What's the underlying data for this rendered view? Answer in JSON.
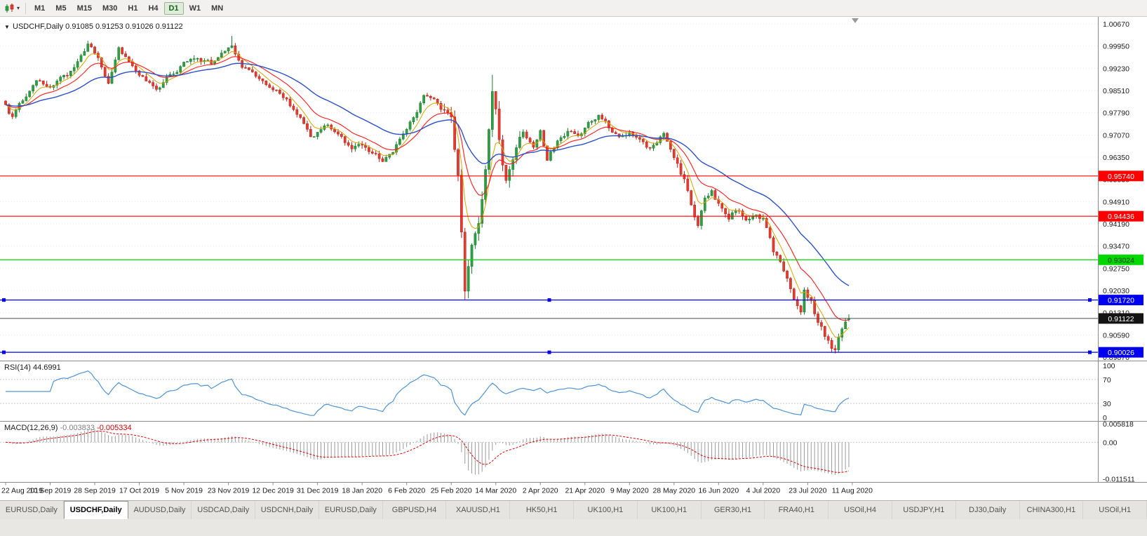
{
  "toolbar": {
    "chart_icon": "candlestick-chart-icon",
    "dropdown_caret": "▾",
    "timeframes": [
      {
        "label": "M1",
        "active": false
      },
      {
        "label": "M5",
        "active": false
      },
      {
        "label": "M15",
        "active": false
      },
      {
        "label": "M30",
        "active": false
      },
      {
        "label": "H1",
        "active": false
      },
      {
        "label": "H4",
        "active": false
      },
      {
        "label": "D1",
        "active": true
      },
      {
        "label": "W1",
        "active": false
      },
      {
        "label": "MN",
        "active": false
      }
    ]
  },
  "chart": {
    "symbol_line": {
      "collapse_icon": "▼",
      "symbol": "USDCHF,Daily",
      "open": "0.91085",
      "high": "0.91253",
      "low": "0.91026",
      "close": "0.91122"
    },
    "colors": {
      "grid": "#ebebeb",
      "background": "#ffffff",
      "axis_text": "#1a1a1a",
      "separator": "#8a8a8a"
    },
    "price_axis": {
      "labels": [
        "1.00670",
        "0.99950",
        "0.99230",
        "0.98510",
        "0.97790",
        "0.97070",
        "0.96350",
        "0.95630",
        "0.94910",
        "0.94190",
        "0.93470",
        "0.92750",
        "0.92030",
        "0.91310",
        "0.90590",
        "0.89870"
      ]
    },
    "hlines": [
      {
        "price": 0.9574,
        "label": "0.95740",
        "color": "#ff0000",
        "text_color": "#ffffff",
        "handles": false
      },
      {
        "price": 0.94436,
        "label": "0.94436",
        "color": "#ff0000",
        "text_color": "#ffffff",
        "handles": false
      },
      {
        "price": 0.93024,
        "label": "0.93024",
        "color": "#00d800",
        "text_color": "#003300",
        "handles": false
      },
      {
        "price": 0.9172,
        "label": "0.91720",
        "color": "#0000ee",
        "text_color": "#ffffff",
        "handles": true
      },
      {
        "price": 0.90026,
        "label": "0.90026",
        "color": "#0000ee",
        "text_color": "#ffffff",
        "handles": true
      }
    ],
    "current_price": {
      "value": 0.91122,
      "label": "0.91122",
      "bg": "#141414",
      "text_color": "#ffffff",
      "line_color": "#4a4a4a"
    }
  },
  "rsi_pane": {
    "title": "RSI(14)",
    "value": "44.6991",
    "levels": [
      "100",
      "70",
      "30",
      "0"
    ],
    "color": "#4f93d2"
  },
  "macd_pane": {
    "title": "MACD(12,26,9)",
    "value_main": "-0.003833",
    "value_signal": "-0.005334",
    "axis_labels": [
      "0.005818",
      "0.00",
      "-0.011511"
    ]
  },
  "date_axis": {
    "labels": [
      "22 Aug 2019",
      "10 Sep 2019",
      "28 Sep 2019",
      "17 Oct 2019",
      "5 Nov 2019",
      "23 Nov 2019",
      "12 Dec 2019",
      "31 Dec 2019",
      "18 Jan 2020",
      "6 Feb 2020",
      "25 Feb 2020",
      "14 Mar 2020",
      "2 Apr 2020",
      "21 Apr 2020",
      "9 May 2020",
      "28 May 2020",
      "16 Jun 2020",
      "4 Jul 2020",
      "23 Jul 2020",
      "11 Aug 2020"
    ]
  },
  "tabs": [
    {
      "label": "EURUSD,Daily",
      "active": false
    },
    {
      "label": "USDCHF,Daily",
      "active": true
    },
    {
      "label": "AUDUSD,Daily",
      "active": false
    },
    {
      "label": "USDCAD,Daily",
      "active": false
    },
    {
      "label": "USDCNH,Daily",
      "active": false
    },
    {
      "label": "EURUSD,Daily",
      "active": false
    },
    {
      "label": "GBPUSD,H4",
      "active": false
    },
    {
      "label": "XAUUSD,H1",
      "active": false
    },
    {
      "label": "HK50,H1",
      "active": false
    },
    {
      "label": "UK100,H1",
      "active": false
    },
    {
      "label": "UK100,H1",
      "active": false
    },
    {
      "label": "GER30,H1",
      "active": false
    },
    {
      "label": "FRA40,H1",
      "active": false
    },
    {
      "label": "USOil,H4",
      "active": false
    },
    {
      "label": "USDJPY,H1",
      "active": false
    },
    {
      "label": "DJ30,Daily",
      "active": false
    },
    {
      "label": "CHINA300,H1",
      "active": false
    },
    {
      "label": "USOil,H1",
      "active": false
    }
  ],
  "chart_data": {
    "type": "candlestick",
    "symbol": "USDCHF",
    "timeframe": "Daily",
    "title": "USDCHF,Daily",
    "bars": 247,
    "x_range_dates": [
      "22 Aug 2019",
      "20 Aug 2020"
    ],
    "price_axis_range": [
      0.8987,
      1.0067
    ],
    "ohlc_last": {
      "open": 0.91085,
      "high": 0.91253,
      "low": 0.91026,
      "close": 0.91122
    },
    "colors": {
      "up": "#2f9e44",
      "up_stroke": "#1e7a30",
      "down": "#e23c33",
      "down_stroke": "#b22318"
    },
    "close_path_anchors": [
      [
        0,
        0.98
      ],
      [
        2,
        0.9762
      ],
      [
        5,
        0.982
      ],
      [
        9,
        0.9888
      ],
      [
        13,
        0.9862
      ],
      [
        18,
        0.9902
      ],
      [
        22,
        0.996
      ],
      [
        24,
        0.9998
      ],
      [
        27,
        0.996
      ],
      [
        30,
        0.9868
      ],
      [
        33,
        0.9985
      ],
      [
        36,
        0.9948
      ],
      [
        40,
        0.9898
      ],
      [
        44,
        0.9856
      ],
      [
        48,
        0.9902
      ],
      [
        52,
        0.9936
      ],
      [
        56,
        0.9958
      ],
      [
        60,
        0.9936
      ],
      [
        64,
        0.9972
      ],
      [
        66,
        0.9996
      ],
      [
        69,
        0.993
      ],
      [
        73,
        0.9898
      ],
      [
        78,
        0.9864
      ],
      [
        82,
        0.982
      ],
      [
        84,
        0.9788
      ],
      [
        87,
        0.9744
      ],
      [
        89,
        0.97
      ],
      [
        91,
        0.9716
      ],
      [
        94,
        0.9736
      ],
      [
        97,
        0.9702
      ],
      [
        101,
        0.9664
      ],
      [
        104,
        0.9672
      ],
      [
        107,
        0.9648
      ],
      [
        110,
        0.9624
      ],
      [
        113,
        0.9658
      ],
      [
        117,
        0.9718
      ],
      [
        120,
        0.9788
      ],
      [
        122,
        0.9846
      ],
      [
        125,
        0.982
      ],
      [
        128,
        0.9778
      ],
      [
        130,
        0.974
      ],
      [
        132,
        0.956
      ],
      [
        134,
        0.9205
      ],
      [
        136,
        0.9336
      ],
      [
        138,
        0.9425
      ],
      [
        140,
        0.96
      ],
      [
        142,
        0.9848
      ],
      [
        144,
        0.97
      ],
      [
        146,
        0.9562
      ],
      [
        148,
        0.962
      ],
      [
        151,
        0.97
      ],
      [
        154,
        0.9662
      ],
      [
        156,
        0.9722
      ],
      [
        158,
        0.9634
      ],
      [
        161,
        0.9684
      ],
      [
        164,
        0.9722
      ],
      [
        167,
        0.9702
      ],
      [
        169,
        0.9732
      ],
      [
        173,
        0.9772
      ],
      [
        176,
        0.9732
      ],
      [
        179,
        0.9702
      ],
      [
        182,
        0.9722
      ],
      [
        185,
        0.97
      ],
      [
        188,
        0.9662
      ],
      [
        192,
        0.971
      ],
      [
        195,
        0.9642
      ],
      [
        198,
        0.956
      ],
      [
        200,
        0.9478
      ],
      [
        202,
        0.942
      ],
      [
        204,
        0.9498
      ],
      [
        206,
        0.9522
      ],
      [
        208,
        0.9482
      ],
      [
        211,
        0.9432
      ],
      [
        213,
        0.9462
      ],
      [
        216,
        0.944
      ],
      [
        219,
        0.9452
      ],
      [
        221,
        0.943
      ],
      [
        224,
        0.933
      ],
      [
        226,
        0.9292
      ],
      [
        228,
        0.9232
      ],
      [
        230,
        0.9158
      ],
      [
        232,
        0.912
      ],
      [
        233,
        0.9198
      ],
      [
        235,
        0.9162
      ],
      [
        237,
        0.91
      ],
      [
        239,
        0.9058
      ],
      [
        241,
        0.902
      ],
      [
        242,
        0.9004
      ],
      [
        244,
        0.9078
      ],
      [
        246,
        0.91122
      ]
    ],
    "wick_extremes": [
      {
        "bar": 24,
        "high": 1.0012
      },
      {
        "bar": 66,
        "high": 1.0028
      },
      {
        "bar": 134,
        "low": 0.9172
      },
      {
        "bar": 142,
        "high": 0.9902
      },
      {
        "bar": 242,
        "low": 0.8999
      }
    ],
    "moving_averages": [
      {
        "name": "fast-ma",
        "method": "EMA",
        "period": 6,
        "color": "#d9a300",
        "width": 1
      },
      {
        "name": "mid-ma",
        "method": "EMA",
        "period": 14,
        "color": "#ff1a1a",
        "width": 1.1
      },
      {
        "name": "slow-ma",
        "method": "EMA",
        "period": 34,
        "color": "#2b50c8",
        "width": 1.4
      }
    ],
    "indicators": {
      "rsi": {
        "period": 14,
        "last_value": 44.6991,
        "levels": [
          100,
          70,
          30,
          0
        ]
      },
      "macd": {
        "fast": 12,
        "slow": 26,
        "signal": 9,
        "last_main": -0.003833,
        "last_signal": -0.005334,
        "scale_max": 0.0064,
        "scale_min": -0.0124,
        "histogram_color": "#9a9a9a",
        "signal_color": "#e00000"
      }
    },
    "support_resistance_lines": [
      0.9574,
      0.94436,
      0.93024,
      0.9172,
      0.90026
    ]
  }
}
